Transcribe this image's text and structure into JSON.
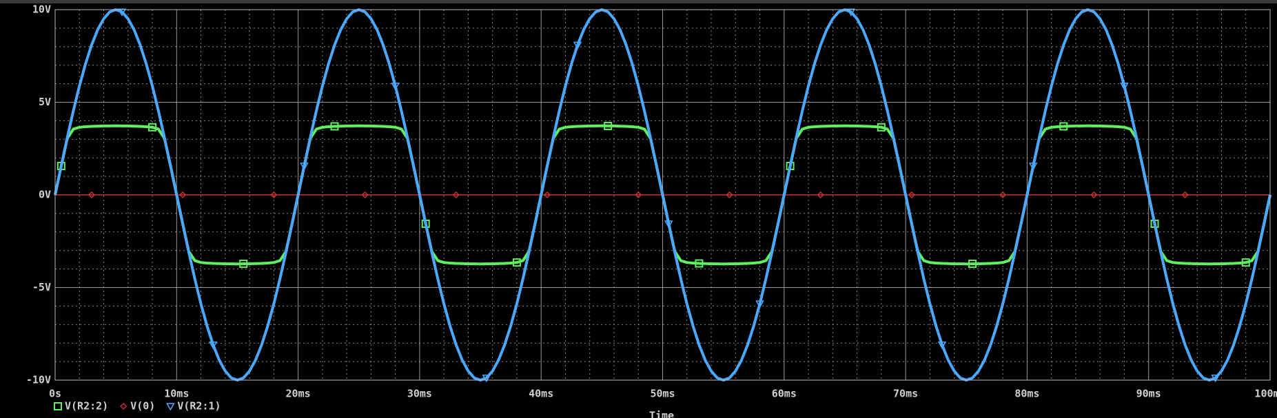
{
  "chart_data": {
    "type": "line",
    "x_label": "Time",
    "x": [
      0,
      0.5,
      1,
      1.5,
      2,
      2.5,
      3,
      3.5,
      4,
      4.5,
      5,
      5.5,
      6,
      6.5,
      7,
      7.5,
      8,
      8.5,
      9,
      9.5,
      10,
      10.5,
      11,
      11.5,
      12,
      12.5,
      13,
      13.5,
      14,
      14.5,
      15,
      15.5,
      16,
      16.5,
      17,
      17.5,
      18,
      18.5,
      19,
      19.5,
      20,
      20.5,
      21,
      21.5,
      22,
      22.5,
      23,
      23.5,
      24,
      24.5,
      25,
      25.5,
      26,
      26.5,
      27,
      27.5,
      28,
      28.5,
      29,
      29.5,
      30,
      30.5,
      31,
      31.5,
      32,
      32.5,
      33,
      33.5,
      34,
      34.5,
      35,
      35.5,
      36,
      36.5,
      37,
      37.5,
      38,
      38.5,
      39,
      39.5,
      40,
      40.5,
      41,
      41.5,
      42,
      42.5,
      43,
      43.5,
      44,
      44.5,
      45,
      45.5,
      46,
      46.5,
      47,
      47.5,
      48,
      48.5,
      49,
      49.5,
      50,
      50.5,
      51,
      51.5,
      52,
      52.5,
      53,
      53.5,
      54,
      54.5,
      55,
      55.5,
      56,
      56.5,
      57,
      57.5,
      58,
      58.5,
      59,
      59.5,
      60,
      60.5,
      61,
      61.5,
      62,
      62.5,
      63,
      63.5,
      64,
      64.5,
      65,
      65.5,
      66,
      66.5,
      67,
      67.5,
      68,
      68.5,
      69,
      69.5,
      70,
      70.5,
      71,
      71.5,
      72,
      72.5,
      73,
      73.5,
      74,
      74.5,
      75,
      75.5,
      76,
      76.5,
      77,
      77.5,
      78,
      78.5,
      79,
      79.5,
      80,
      80.5,
      81,
      81.5,
      82,
      82.5,
      83,
      83.5,
      84,
      84.5,
      85,
      85.5,
      86,
      86.5,
      87,
      87.5,
      88,
      88.5,
      89,
      89.5,
      90,
      90.5,
      91,
      91.5,
      92,
      92.5,
      93,
      93.5,
      94,
      94.5,
      95,
      95.5,
      96,
      96.5,
      97,
      97.5,
      98,
      98.5,
      99,
      99.5,
      100
    ],
    "series": [
      {
        "name": "V(R2:2)",
        "color": "#5ef05e",
        "marker": "square",
        "values": [
          0,
          1.56,
          3.05,
          3.55,
          3.65,
          3.68,
          3.7,
          3.71,
          3.72,
          3.72,
          3.73,
          3.72,
          3.72,
          3.71,
          3.7,
          3.68,
          3.65,
          3.55,
          3.05,
          1.56,
          0,
          -1.56,
          -3.05,
          -3.55,
          -3.65,
          -3.68,
          -3.7,
          -3.71,
          -3.72,
          -3.72,
          -3.73,
          -3.72,
          -3.72,
          -3.71,
          -3.7,
          -3.68,
          -3.65,
          -3.55,
          -3.05,
          -1.56,
          0,
          1.56,
          3.05,
          3.55,
          3.65,
          3.68,
          3.7,
          3.71,
          3.72,
          3.72,
          3.73,
          3.72,
          3.72,
          3.71,
          3.7,
          3.68,
          3.65,
          3.55,
          3.05,
          1.56,
          0,
          -1.56,
          -3.05,
          -3.55,
          -3.65,
          -3.68,
          -3.7,
          -3.71,
          -3.72,
          -3.72,
          -3.73,
          -3.72,
          -3.72,
          -3.71,
          -3.7,
          -3.68,
          -3.65,
          -3.55,
          -3.05,
          -1.56,
          0,
          1.56,
          3.05,
          3.55,
          3.65,
          3.68,
          3.7,
          3.71,
          3.72,
          3.72,
          3.73,
          3.72,
          3.72,
          3.71,
          3.7,
          3.68,
          3.65,
          3.55,
          3.05,
          1.56,
          0,
          -1.56,
          -3.05,
          -3.55,
          -3.65,
          -3.68,
          -3.7,
          -3.71,
          -3.72,
          -3.72,
          -3.73,
          -3.72,
          -3.72,
          -3.71,
          -3.7,
          -3.68,
          -3.65,
          -3.55,
          -3.05,
          -1.56,
          0,
          1.56,
          3.05,
          3.55,
          3.65,
          3.68,
          3.7,
          3.71,
          3.72,
          3.72,
          3.73,
          3.72,
          3.72,
          3.71,
          3.7,
          3.68,
          3.65,
          3.55,
          3.05,
          1.56,
          0,
          -1.56,
          -3.05,
          -3.55,
          -3.65,
          -3.68,
          -3.7,
          -3.71,
          -3.72,
          -3.72,
          -3.73,
          -3.72,
          -3.72,
          -3.71,
          -3.7,
          -3.68,
          -3.65,
          -3.55,
          -3.05,
          -1.56,
          0,
          1.56,
          3.05,
          3.55,
          3.65,
          3.68,
          3.7,
          3.71,
          3.72,
          3.72,
          3.73,
          3.72,
          3.72,
          3.71,
          3.7,
          3.68,
          3.65,
          3.55,
          3.05,
          1.56,
          0,
          -1.56,
          -3.05,
          -3.55,
          -3.65,
          -3.68,
          -3.7,
          -3.71,
          -3.72,
          -3.72,
          -3.73,
          -3.72,
          -3.72,
          -3.71,
          -3.7,
          -3.68,
          -3.65,
          -3.55,
          -3.05,
          -1.56,
          0
        ]
      },
      {
        "name": "V(0)",
        "color": "#c83232",
        "marker": "diamond",
        "values": [
          0,
          0,
          0,
          0,
          0,
          0,
          0,
          0,
          0,
          0,
          0,
          0,
          0,
          0,
          0,
          0,
          0,
          0,
          0,
          0,
          0,
          0,
          0,
          0,
          0,
          0,
          0,
          0,
          0,
          0,
          0,
          0,
          0,
          0,
          0,
          0,
          0,
          0,
          0,
          0,
          0,
          0,
          0,
          0,
          0,
          0,
          0,
          0,
          0,
          0,
          0,
          0,
          0,
          0,
          0,
          0,
          0,
          0,
          0,
          0,
          0,
          0,
          0,
          0,
          0,
          0,
          0,
          0,
          0,
          0,
          0,
          0,
          0,
          0,
          0,
          0,
          0,
          0,
          0,
          0,
          0,
          0,
          0,
          0,
          0,
          0,
          0,
          0,
          0,
          0,
          0,
          0,
          0,
          0,
          0,
          0,
          0,
          0,
          0,
          0,
          0,
          0,
          0,
          0,
          0,
          0,
          0,
          0,
          0,
          0,
          0,
          0,
          0,
          0,
          0,
          0,
          0,
          0,
          0,
          0,
          0,
          0,
          0,
          0,
          0,
          0,
          0,
          0,
          0,
          0,
          0,
          0,
          0,
          0,
          0,
          0,
          0,
          0,
          0,
          0,
          0,
          0,
          0,
          0,
          0,
          0,
          0,
          0,
          0,
          0,
          0,
          0,
          0,
          0,
          0,
          0,
          0,
          0,
          0,
          0,
          0,
          0,
          0,
          0,
          0,
          0,
          0,
          0,
          0,
          0,
          0,
          0,
          0,
          0,
          0,
          0,
          0,
          0,
          0,
          0,
          0,
          0,
          0,
          0,
          0,
          0,
          0,
          0,
          0,
          0,
          0,
          0,
          0,
          0,
          0,
          0,
          0,
          0,
          0,
          0,
          0
        ]
      },
      {
        "name": "V(R2:1)",
        "color": "#4aa8ff",
        "marker": "triangle",
        "values": [
          0,
          1.56,
          3.09,
          4.54,
          5.88,
          7.07,
          8.09,
          8.91,
          9.51,
          9.88,
          10,
          9.88,
          9.51,
          8.91,
          8.09,
          7.07,
          5.88,
          4.54,
          3.09,
          1.56,
          0,
          -1.56,
          -3.09,
          -4.54,
          -5.88,
          -7.07,
          -8.09,
          -8.91,
          -9.51,
          -9.88,
          -10,
          -9.88,
          -9.51,
          -8.91,
          -8.09,
          -7.07,
          -5.88,
          -4.54,
          -3.09,
          -1.56,
          0,
          1.56,
          3.09,
          4.54,
          5.88,
          7.07,
          8.09,
          8.91,
          9.51,
          9.88,
          10,
          9.88,
          9.51,
          8.91,
          8.09,
          7.07,
          5.88,
          4.54,
          3.09,
          1.56,
          0,
          -1.56,
          -3.09,
          -4.54,
          -5.88,
          -7.07,
          -8.09,
          -8.91,
          -9.51,
          -9.88,
          -10,
          -9.88,
          -9.51,
          -8.91,
          -8.09,
          -7.07,
          -5.88,
          -4.54,
          -3.09,
          -1.56,
          0,
          1.56,
          3.09,
          4.54,
          5.88,
          7.07,
          8.09,
          8.91,
          9.51,
          9.88,
          10,
          9.88,
          9.51,
          8.91,
          8.09,
          7.07,
          5.88,
          4.54,
          3.09,
          1.56,
          0,
          -1.56,
          -3.09,
          -4.54,
          -5.88,
          -7.07,
          -8.09,
          -8.91,
          -9.51,
          -9.88,
          -10,
          -9.88,
          -9.51,
          -8.91,
          -8.09,
          -7.07,
          -5.88,
          -4.54,
          -3.09,
          -1.56,
          0,
          1.56,
          3.09,
          4.54,
          5.88,
          7.07,
          8.09,
          8.91,
          9.51,
          9.88,
          10,
          9.88,
          9.51,
          8.91,
          8.09,
          7.07,
          5.88,
          4.54,
          3.09,
          1.56,
          0,
          -1.56,
          -3.09,
          -4.54,
          -5.88,
          -7.07,
          -8.09,
          -8.91,
          -9.51,
          -9.88,
          -10,
          -9.88,
          -9.51,
          -8.91,
          -8.09,
          -7.07,
          -5.88,
          -4.54,
          -3.09,
          -1.56,
          0,
          1.56,
          3.09,
          4.54,
          5.88,
          7.07,
          8.09,
          8.91,
          9.51,
          9.88,
          10,
          9.88,
          9.51,
          8.91,
          8.09,
          7.07,
          5.88,
          4.54,
          3.09,
          1.56,
          0,
          -1.56,
          -3.09,
          -4.54,
          -5.88,
          -7.07,
          -8.09,
          -8.91,
          -9.51,
          -9.88,
          -10,
          -9.88,
          -9.51,
          -8.91,
          -8.09,
          -7.07,
          -5.88,
          -4.54,
          -3.09,
          -1.56,
          0
        ]
      }
    ],
    "xlim": [
      0,
      100
    ],
    "xticks": [
      {
        "value": 0,
        "label": "0s"
      },
      {
        "value": 10,
        "label": "10ms"
      },
      {
        "value": 20,
        "label": "20ms"
      },
      {
        "value": 30,
        "label": "30ms"
      },
      {
        "value": 40,
        "label": "40ms"
      },
      {
        "value": 50,
        "label": "50ms"
      },
      {
        "value": 60,
        "label": "60ms"
      },
      {
        "value": 70,
        "label": "70ms"
      },
      {
        "value": 80,
        "label": "80ms"
      },
      {
        "value": 90,
        "label": "90ms"
      },
      {
        "value": 100,
        "label": "100ms"
      }
    ],
    "ylim": [
      -10,
      10
    ],
    "yticks": [
      {
        "value": -10,
        "label": "-10V"
      },
      {
        "value": -5,
        "label": "-5V"
      },
      {
        "value": 0,
        "label": "0V"
      },
      {
        "value": 5,
        "label": "5V"
      },
      {
        "value": 10,
        "label": "10V"
      }
    ],
    "grid": true,
    "legend": "bottom-left"
  }
}
